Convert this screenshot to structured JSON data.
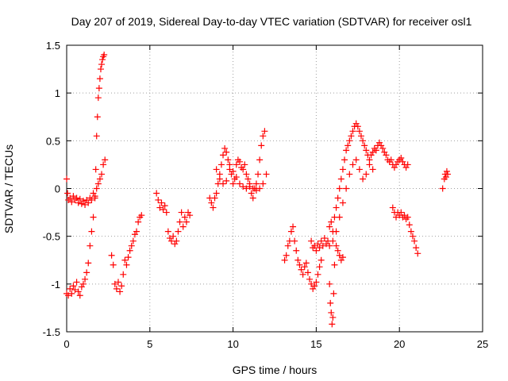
{
  "chart_data": {
    "type": "scatter",
    "title": "Day 207 of 2019, Sidereal Day-to-day VTEC variation (SDTVAR) for receiver osl1",
    "xlabel": "GPS time / hours",
    "ylabel": "SDTVAR / TECUs",
    "xlim": [
      0,
      25
    ],
    "ylim": [
      -1.5,
      1.5
    ],
    "xticks": [
      0,
      5,
      10,
      15,
      20,
      25
    ],
    "xtick_labels": [
      "0",
      "5",
      "10",
      "15",
      "20",
      "25"
    ],
    "yticks": [
      -1.5,
      -1,
      -0.5,
      0,
      0.5,
      1,
      1.5
    ],
    "ytick_labels": [
      "-1.5",
      "-1",
      "-0.5",
      "0",
      "0.5",
      "1",
      "1.5"
    ],
    "grid": true,
    "marker": "plus",
    "color": "#ff0000",
    "series": [
      {
        "points": [
          [
            0.0,
            0.1
          ],
          [
            0.05,
            -0.05
          ],
          [
            0.1,
            -0.12
          ],
          [
            0.2,
            -0.1
          ],
          [
            0.3,
            -0.14
          ],
          [
            0.4,
            -0.08
          ],
          [
            0.5,
            -0.12
          ],
          [
            0.6,
            -0.1
          ],
          [
            0.7,
            -0.15
          ],
          [
            0.8,
            -0.11
          ],
          [
            0.9,
            -0.16
          ],
          [
            1.0,
            -0.13
          ],
          [
            1.1,
            -0.17
          ],
          [
            1.2,
            -0.12
          ],
          [
            1.3,
            -0.15
          ],
          [
            1.4,
            -0.1
          ],
          [
            1.5,
            -0.12
          ],
          [
            1.6,
            -0.05
          ],
          [
            1.7,
            -0.08
          ],
          [
            1.8,
            0.0
          ],
          [
            1.9,
            0.05
          ],
          [
            2.0,
            0.1
          ],
          [
            2.1,
            0.15
          ],
          [
            2.2,
            0.25
          ],
          [
            2.3,
            0.3
          ],
          [
            0.0,
            -1.1
          ],
          [
            0.1,
            -1.12
          ],
          [
            0.2,
            -1.05
          ],
          [
            0.3,
            -1.1
          ],
          [
            0.4,
            -1.02
          ],
          [
            0.5,
            -1.06
          ],
          [
            0.6,
            -0.98
          ],
          [
            0.7,
            -1.08
          ],
          [
            0.8,
            -1.12
          ],
          [
            0.9,
            -1.03
          ],
          [
            1.0,
            -1.0
          ],
          [
            1.1,
            -0.95
          ],
          [
            1.2,
            -0.88
          ],
          [
            1.3,
            -0.78
          ],
          [
            1.4,
            -0.6
          ],
          [
            1.5,
            -0.45
          ],
          [
            1.6,
            -0.3
          ],
          [
            1.7,
            -0.1
          ],
          [
            1.75,
            0.2
          ],
          [
            1.8,
            0.55
          ],
          [
            1.85,
            0.75
          ],
          [
            1.9,
            0.95
          ],
          [
            1.95,
            1.05
          ],
          [
            2.0,
            1.15
          ],
          [
            2.05,
            1.25
          ],
          [
            2.1,
            1.3
          ],
          [
            2.15,
            1.35
          ],
          [
            2.2,
            1.38
          ],
          [
            2.25,
            1.4
          ],
          [
            2.7,
            -0.7
          ],
          [
            2.8,
            -0.8
          ],
          [
            2.9,
            -1.0
          ],
          [
            3.0,
            -1.05
          ],
          [
            3.1,
            -0.98
          ],
          [
            3.2,
            -1.08
          ],
          [
            3.3,
            -1.02
          ],
          [
            3.4,
            -0.9
          ],
          [
            3.5,
            -0.75
          ],
          [
            3.6,
            -0.8
          ],
          [
            3.7,
            -0.72
          ],
          [
            3.8,
            -0.65
          ],
          [
            3.9,
            -0.6
          ],
          [
            4.0,
            -0.55
          ],
          [
            4.1,
            -0.48
          ],
          [
            4.2,
            -0.45
          ],
          [
            4.3,
            -0.35
          ],
          [
            4.4,
            -0.3
          ],
          [
            4.5,
            -0.28
          ],
          [
            5.4,
            -0.05
          ],
          [
            5.5,
            -0.12
          ],
          [
            5.6,
            -0.2
          ],
          [
            5.7,
            -0.15
          ],
          [
            5.8,
            -0.22
          ],
          [
            5.9,
            -0.18
          ],
          [
            6.0,
            -0.25
          ],
          [
            6.1,
            -0.45
          ],
          [
            6.2,
            -0.52
          ],
          [
            6.3,
            -0.55
          ],
          [
            6.4,
            -0.5
          ],
          [
            6.5,
            -0.58
          ],
          [
            6.6,
            -0.55
          ],
          [
            6.7,
            -0.45
          ],
          [
            6.8,
            -0.35
          ],
          [
            6.9,
            -0.25
          ],
          [
            7.0,
            -0.4
          ],
          [
            7.1,
            -0.3
          ],
          [
            7.2,
            -0.35
          ],
          [
            7.3,
            -0.25
          ],
          [
            7.4,
            -0.28
          ],
          [
            8.6,
            -0.1
          ],
          [
            8.7,
            -0.15
          ],
          [
            8.8,
            -0.2
          ],
          [
            8.9,
            -0.1
          ],
          [
            9.0,
            -0.05
          ],
          [
            9.1,
            0.05
          ],
          [
            9.2,
            0.15
          ],
          [
            9.3,
            0.25
          ],
          [
            9.4,
            0.35
          ],
          [
            9.5,
            0.42
          ],
          [
            9.6,
            0.38
          ],
          [
            9.7,
            0.3
          ],
          [
            9.8,
            0.25
          ],
          [
            9.9,
            0.15
          ],
          [
            10.0,
            0.05
          ],
          [
            10.1,
            0.1
          ],
          [
            10.2,
            0.25
          ],
          [
            10.3,
            0.3
          ],
          [
            10.4,
            0.28
          ],
          [
            10.5,
            0.22
          ],
          [
            10.6,
            0.2
          ],
          [
            10.7,
            0.25
          ],
          [
            10.8,
            0.15
          ],
          [
            10.9,
            0.1
          ],
          [
            11.0,
            0.05
          ],
          [
            11.1,
            -0.05
          ],
          [
            11.2,
            -0.1
          ],
          [
            11.3,
            0.0
          ],
          [
            11.4,
            0.05
          ],
          [
            11.5,
            0.15
          ],
          [
            11.6,
            0.3
          ],
          [
            11.7,
            0.45
          ],
          [
            11.8,
            0.55
          ],
          [
            11.9,
            0.6
          ],
          [
            9.0,
            0.2
          ],
          [
            9.2,
            0.1
          ],
          [
            9.4,
            0.05
          ],
          [
            9.6,
            0.08
          ],
          [
            9.8,
            0.2
          ],
          [
            10.0,
            0.18
          ],
          [
            10.2,
            0.12
          ],
          [
            10.4,
            0.05
          ],
          [
            10.6,
            0.02
          ],
          [
            10.8,
            0.0
          ],
          [
            11.0,
            0.02
          ],
          [
            11.2,
            0.0
          ],
          [
            11.4,
            -0.02
          ],
          [
            11.6,
            0.0
          ],
          [
            11.8,
            0.05
          ],
          [
            12.0,
            0.15
          ],
          [
            13.1,
            -0.75
          ],
          [
            13.2,
            -0.7
          ],
          [
            13.3,
            -0.6
          ],
          [
            13.4,
            -0.55
          ],
          [
            13.5,
            -0.45
          ],
          [
            13.6,
            -0.4
          ],
          [
            13.7,
            -0.55
          ],
          [
            13.8,
            -0.65
          ],
          [
            13.9,
            -0.75
          ],
          [
            14.0,
            -0.8
          ],
          [
            14.1,
            -0.85
          ],
          [
            14.2,
            -0.9
          ],
          [
            14.3,
            -0.82
          ],
          [
            14.4,
            -0.78
          ],
          [
            14.5,
            -0.88
          ],
          [
            14.6,
            -0.95
          ],
          [
            14.7,
            -1.0
          ],
          [
            14.8,
            -1.05
          ],
          [
            14.9,
            -1.02
          ],
          [
            15.0,
            -0.98
          ],
          [
            15.1,
            -0.9
          ],
          [
            15.2,
            -0.82
          ],
          [
            15.3,
            -0.75
          ],
          [
            14.7,
            -0.55
          ],
          [
            14.8,
            -0.62
          ],
          [
            14.9,
            -0.6
          ],
          [
            15.0,
            -0.65
          ],
          [
            15.1,
            -0.58
          ],
          [
            15.2,
            -0.62
          ],
          [
            15.3,
            -0.55
          ],
          [
            15.4,
            -0.6
          ],
          [
            15.5,
            -0.52
          ],
          [
            15.6,
            -0.58
          ],
          [
            15.7,
            -0.55
          ],
          [
            15.8,
            -0.6
          ],
          [
            15.8,
            -1.0
          ],
          [
            15.85,
            -1.2
          ],
          [
            15.9,
            -1.3
          ],
          [
            15.95,
            -1.42
          ],
          [
            16.0,
            -1.35
          ],
          [
            16.05,
            -1.1
          ],
          [
            16.1,
            -0.8
          ],
          [
            16.2,
            -0.6
          ],
          [
            16.3,
            -0.65
          ],
          [
            16.4,
            -0.7
          ],
          [
            16.5,
            -0.75
          ],
          [
            16.6,
            -0.72
          ],
          [
            15.8,
            -0.4
          ],
          [
            15.9,
            -0.35
          ],
          [
            16.0,
            -0.45
          ],
          [
            16.1,
            -0.3
          ],
          [
            16.2,
            -0.2
          ],
          [
            16.3,
            -0.1
          ],
          [
            16.4,
            0.0
          ],
          [
            16.5,
            0.1
          ],
          [
            16.6,
            0.2
          ],
          [
            16.7,
            0.3
          ],
          [
            16.8,
            0.4
          ],
          [
            16.9,
            0.45
          ],
          [
            17.0,
            0.5
          ],
          [
            17.1,
            0.55
          ],
          [
            17.2,
            0.6
          ],
          [
            17.3,
            0.65
          ],
          [
            17.4,
            0.68
          ],
          [
            17.5,
            0.65
          ],
          [
            17.6,
            0.6
          ],
          [
            17.7,
            0.55
          ],
          [
            17.8,
            0.5
          ],
          [
            17.9,
            0.45
          ],
          [
            18.0,
            0.4
          ],
          [
            18.1,
            0.35
          ],
          [
            18.2,
            0.3
          ],
          [
            18.3,
            0.35
          ],
          [
            18.4,
            0.38
          ],
          [
            18.5,
            0.42
          ],
          [
            18.6,
            0.4
          ],
          [
            18.7,
            0.45
          ],
          [
            18.8,
            0.48
          ],
          [
            18.9,
            0.45
          ],
          [
            19.0,
            0.42
          ],
          [
            19.1,
            0.38
          ],
          [
            19.2,
            0.35
          ],
          [
            19.3,
            0.3
          ],
          [
            19.4,
            0.28
          ],
          [
            19.5,
            0.3
          ],
          [
            19.6,
            0.25
          ],
          [
            19.7,
            0.22
          ],
          [
            19.8,
            0.25
          ],
          [
            19.9,
            0.28
          ],
          [
            20.0,
            0.3
          ],
          [
            20.1,
            0.32
          ],
          [
            20.2,
            0.28
          ],
          [
            20.3,
            0.25
          ],
          [
            20.4,
            0.22
          ],
          [
            20.5,
            0.25
          ],
          [
            16.0,
            -0.55
          ],
          [
            16.2,
            -0.45
          ],
          [
            16.4,
            -0.3
          ],
          [
            16.6,
            -0.15
          ],
          [
            16.8,
            0.0
          ],
          [
            17.0,
            0.15
          ],
          [
            17.2,
            0.25
          ],
          [
            17.4,
            0.3
          ],
          [
            17.6,
            0.2
          ],
          [
            17.8,
            0.1
          ],
          [
            18.0,
            0.15
          ],
          [
            18.2,
            0.25
          ],
          [
            18.4,
            0.2
          ],
          [
            19.6,
            -0.2
          ],
          [
            19.7,
            -0.25
          ],
          [
            19.8,
            -0.3
          ],
          [
            19.9,
            -0.25
          ],
          [
            20.0,
            -0.28
          ],
          [
            20.1,
            -0.25
          ],
          [
            20.2,
            -0.3
          ],
          [
            20.3,
            -0.28
          ],
          [
            20.4,
            -0.32
          ],
          [
            20.5,
            -0.3
          ],
          [
            20.6,
            -0.38
          ],
          [
            20.7,
            -0.45
          ],
          [
            20.8,
            -0.5
          ],
          [
            20.9,
            -0.55
          ],
          [
            21.0,
            -0.62
          ],
          [
            21.1,
            -0.68
          ],
          [
            22.6,
            0.0
          ],
          [
            22.7,
            0.1
          ],
          [
            22.75,
            0.15
          ],
          [
            22.8,
            0.12
          ],
          [
            22.85,
            0.18
          ],
          [
            22.9,
            0.15
          ]
        ]
      }
    ]
  }
}
